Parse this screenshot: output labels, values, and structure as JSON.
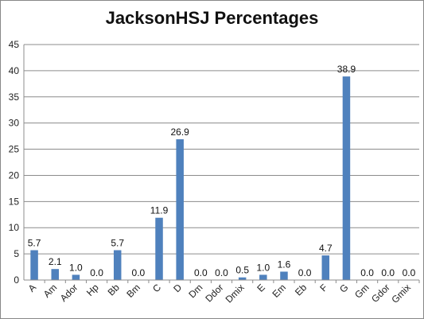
{
  "chart_data": {
    "type": "bar",
    "title": "JacksonHSJ Percentages",
    "xlabel": "",
    "ylabel": "",
    "ylim": [
      0,
      45
    ],
    "yticks": [
      0,
      5,
      10,
      15,
      20,
      25,
      30,
      35,
      40,
      45
    ],
    "grid": true,
    "legend": "none",
    "bar_color": "#4F81BD",
    "categories": [
      "A",
      "Am",
      "Ador",
      "Hp",
      "Bb",
      "Bm",
      "C",
      "D",
      "Dm",
      "Ddor",
      "Dmix",
      "E",
      "Em",
      "Eb",
      "F",
      "G",
      "Gm",
      "Gdor",
      "Gmix"
    ],
    "values": [
      5.7,
      2.1,
      1.0,
      0.0,
      5.7,
      0.0,
      11.9,
      26.9,
      0.0,
      0.0,
      0.5,
      1.0,
      1.6,
      0.0,
      4.7,
      38.9,
      0.0,
      0.0,
      0.0
    ],
    "data_labels": [
      "5.7",
      "2.1",
      "1.0",
      "0.0",
      "5.7",
      "0.0",
      "11.9",
      "26.9",
      "0.0",
      "0.0",
      "0.5",
      "1.0",
      "1.6",
      "0.0",
      "4.7",
      "38.9",
      "0.0",
      "0.0",
      "0.0"
    ]
  }
}
